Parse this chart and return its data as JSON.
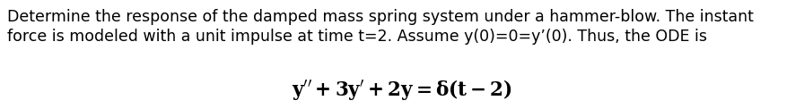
{
  "line1": "Determine the response of the damped mass spring system under a hammer-blow. The instant",
  "line2": "force is modeled with a unit impulse at time t=2. Assume y(0)=0=y’(0). Thus, the ODE is",
  "equation": "$\\mathbf{y'' + 3y' + 2y = \\delta(t - 2)}$",
  "body_fontsize": 12.5,
  "eq_fontsize": 15.5,
  "text_color": "#000000",
  "background_color": "#ffffff",
  "fig_width": 8.96,
  "fig_height": 1.22,
  "dpi": 100
}
